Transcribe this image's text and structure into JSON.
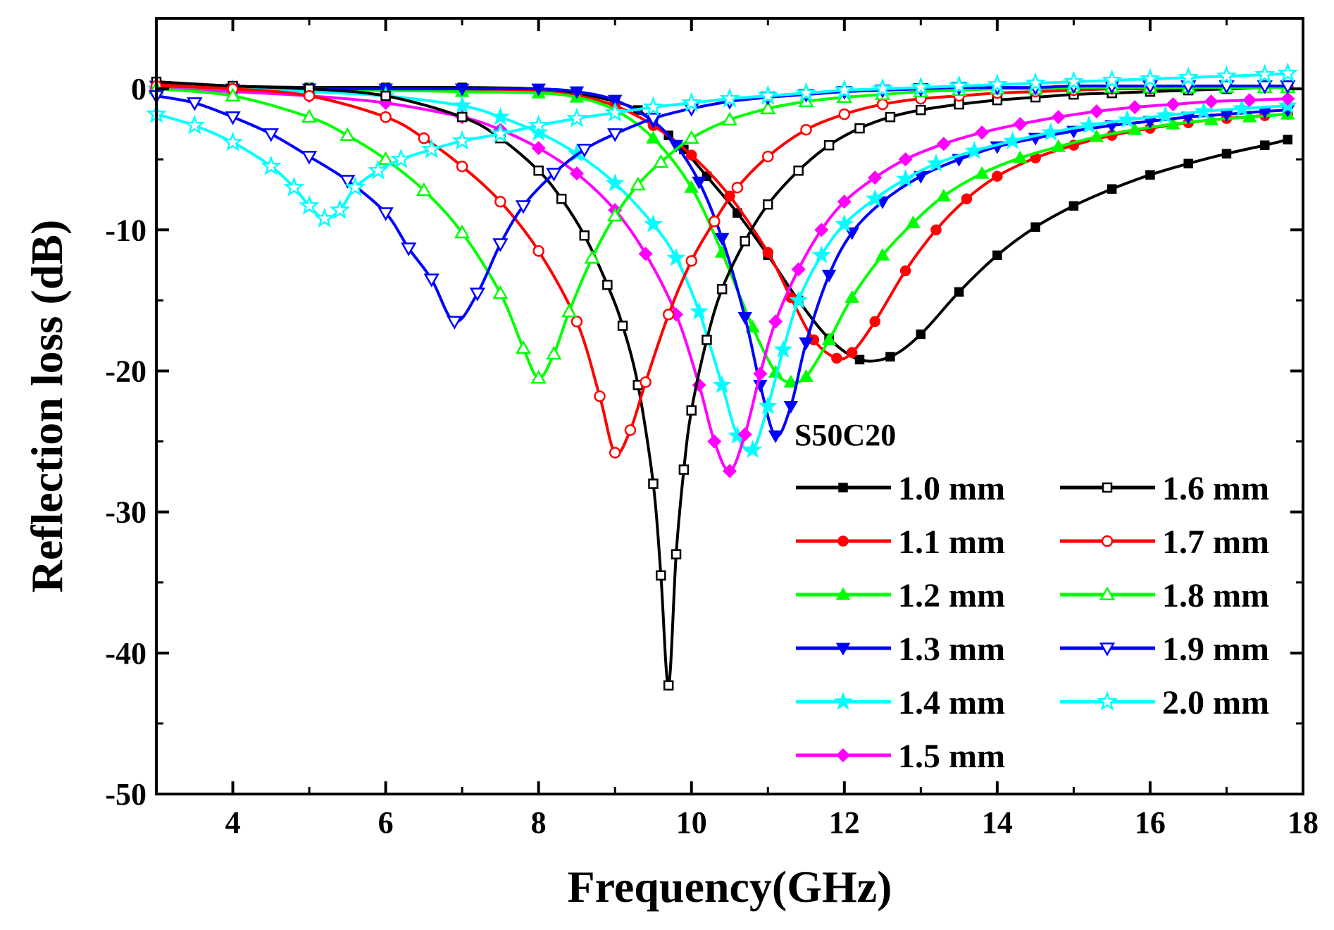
{
  "chart_data": {
    "type": "line",
    "xlabel": "Frequency(GHz)",
    "ylabel": "Reflection loss (dB)",
    "xlim": [
      3,
      18
    ],
    "ylim": [
      -50,
      5
    ],
    "xticks": [
      4,
      6,
      8,
      10,
      12,
      14,
      16,
      18
    ],
    "yticks": [
      0,
      -10,
      -20,
      -30,
      -40,
      -50
    ],
    "legend_title": "S50C20",
    "legend_position": "bottom-right",
    "grid": false,
    "series": [
      {
        "name": "1.0 mm",
        "color": "#000000",
        "marker": "square-filled",
        "x": [
          3.0,
          4.0,
          5.0,
          6.0,
          7.0,
          8.0,
          8.5,
          9.0,
          9.3,
          9.5,
          9.7,
          9.9,
          10.2,
          10.6,
          11.0,
          11.4,
          11.8,
          12.2,
          12.6,
          13.0,
          13.5,
          14.0,
          14.5,
          15.0,
          15.5,
          16.0,
          16.5,
          17.0,
          17.5,
          17.8
        ],
        "y": [
          0.5,
          0.2,
          0.1,
          0.1,
          0.1,
          0.0,
          -0.3,
          -0.9,
          -1.5,
          -2.4,
          -3.3,
          -4.3,
          -6.2,
          -8.8,
          -11.8,
          -15.0,
          -17.7,
          -19.2,
          -19.0,
          -17.4,
          -14.4,
          -11.8,
          -9.8,
          -8.3,
          -7.1,
          -6.1,
          -5.3,
          -4.6,
          -4.0,
          -3.6
        ]
      },
      {
        "name": "1.1 mm",
        "color": "#ff0000",
        "marker": "circle-filled",
        "x": [
          3.0,
          4.0,
          5.0,
          6.0,
          7.0,
          8.0,
          8.5,
          9.0,
          9.5,
          10.0,
          10.5,
          11.0,
          11.3,
          11.6,
          11.9,
          12.1,
          12.4,
          12.8,
          13.2,
          13.6,
          14.0,
          14.5,
          15.0,
          15.5,
          16.0,
          16.5,
          17.0,
          17.5,
          17.8
        ],
        "y": [
          0.3,
          0.1,
          0.0,
          -0.1,
          -0.1,
          -0.2,
          -0.5,
          -1.2,
          -2.6,
          -4.7,
          -7.6,
          -11.6,
          -14.8,
          -17.8,
          -19.1,
          -18.7,
          -16.5,
          -12.9,
          -10.0,
          -7.8,
          -6.2,
          -4.9,
          -4.0,
          -3.3,
          -2.8,
          -2.4,
          -2.1,
          -1.9,
          -1.8
        ]
      },
      {
        "name": "1.2 mm",
        "color": "#00ff00",
        "marker": "triangle-up-filled",
        "x": [
          3.0,
          4.0,
          5.0,
          6.0,
          7.0,
          8.0,
          8.5,
          9.0,
          9.5,
          10.0,
          10.4,
          10.8,
          11.1,
          11.3,
          11.5,
          11.8,
          12.1,
          12.5,
          12.9,
          13.3,
          13.8,
          14.3,
          14.8,
          15.3,
          15.8,
          16.3,
          16.8,
          17.3,
          17.8
        ],
        "y": [
          0.1,
          0.0,
          0.0,
          -0.1,
          -0.2,
          -0.3,
          -0.6,
          -1.5,
          -3.5,
          -7.0,
          -11.6,
          -16.9,
          -20.1,
          -20.8,
          -20.4,
          -17.8,
          -14.8,
          -11.8,
          -9.5,
          -7.6,
          -6.0,
          -4.9,
          -4.1,
          -3.4,
          -2.9,
          -2.5,
          -2.2,
          -2.0,
          -1.8
        ]
      },
      {
        "name": "1.3 mm",
        "color": "#0000ff",
        "marker": "triangle-down-filled",
        "x": [
          3.0,
          4.0,
          5.0,
          6.0,
          7.0,
          8.0,
          8.5,
          9.0,
          9.5,
          9.8,
          10.1,
          10.4,
          10.7,
          10.9,
          11.1,
          11.3,
          11.5,
          11.8,
          12.1,
          12.5,
          13.0,
          13.5,
          14.0,
          14.5,
          15.0,
          15.5,
          16.0,
          16.5,
          17.0,
          17.5,
          17.8
        ],
        "y": [
          0.2,
          0.0,
          0.0,
          0.0,
          0.0,
          0.0,
          -0.2,
          -0.8,
          -2.3,
          -4.0,
          -6.6,
          -10.6,
          -16.2,
          -21.0,
          -24.6,
          -22.5,
          -18.0,
          -13.2,
          -10.2,
          -8.0,
          -6.2,
          -5.0,
          -4.1,
          -3.5,
          -3.0,
          -2.6,
          -2.3,
          -2.0,
          -1.8,
          -1.6,
          -1.5
        ]
      },
      {
        "name": "1.4 mm",
        "color": "#00ffff",
        "marker": "star-filled",
        "x": [
          3.0,
          4.0,
          5.0,
          6.0,
          7.0,
          7.5,
          8.0,
          8.5,
          9.0,
          9.5,
          9.8,
          10.1,
          10.4,
          10.6,
          10.8,
          11.0,
          11.2,
          11.4,
          11.7,
          12.0,
          12.4,
          12.8,
          13.2,
          13.7,
          14.2,
          14.7,
          15.2,
          15.7,
          16.2,
          16.7,
          17.2,
          17.8
        ],
        "y": [
          0.0,
          0.0,
          -0.2,
          -0.5,
          -1.2,
          -2.0,
          -3.1,
          -4.6,
          -6.7,
          -9.6,
          -12.0,
          -15.8,
          -21.0,
          -24.6,
          -25.6,
          -22.5,
          -18.5,
          -15.0,
          -11.8,
          -9.6,
          -7.8,
          -6.4,
          -5.3,
          -4.4,
          -3.7,
          -3.1,
          -2.6,
          -2.2,
          -1.9,
          -1.6,
          -1.4,
          -1.2
        ]
      },
      {
        "name": "1.5 mm",
        "color": "#ff00ff",
        "marker": "diamond-filled",
        "x": [
          3.0,
          4.0,
          5.0,
          6.0,
          7.0,
          7.5,
          8.0,
          8.5,
          9.0,
          9.4,
          9.8,
          10.1,
          10.3,
          10.5,
          10.7,
          10.9,
          11.1,
          11.4,
          11.7,
          12.0,
          12.4,
          12.8,
          13.3,
          13.8,
          14.3,
          14.8,
          15.3,
          15.8,
          16.3,
          16.8,
          17.3,
          17.8
        ],
        "y": [
          0.0,
          -0.2,
          -0.5,
          -1.0,
          -2.0,
          -2.9,
          -4.2,
          -6.0,
          -8.6,
          -11.7,
          -16.0,
          -21.0,
          -25.0,
          -27.1,
          -24.5,
          -20.2,
          -16.5,
          -12.8,
          -10.0,
          -8.0,
          -6.3,
          -5.0,
          -3.9,
          -3.1,
          -2.5,
          -2.0,
          -1.6,
          -1.3,
          -1.1,
          -0.9,
          -0.8,
          -0.7
        ]
      },
      {
        "name": "1.6 mm",
        "color": "#000000",
        "marker": "square-open",
        "x": [
          3.0,
          4.0,
          5.0,
          6.0,
          7.0,
          7.5,
          8.0,
          8.3,
          8.6,
          8.9,
          9.1,
          9.3,
          9.5,
          9.6,
          9.7,
          9.8,
          9.9,
          10.0,
          10.2,
          10.4,
          10.7,
          11.0,
          11.4,
          11.8,
          12.2,
          12.6,
          13.0,
          13.5,
          14.0,
          14.5,
          15.0,
          15.5,
          16.0,
          16.5,
          17.0,
          17.5,
          17.8
        ],
        "y": [
          0.5,
          0.2,
          0.0,
          -0.5,
          -2.0,
          -3.5,
          -5.8,
          -7.8,
          -10.4,
          -13.9,
          -16.8,
          -21.0,
          -28.0,
          -34.5,
          -42.3,
          -33.0,
          -27.0,
          -22.8,
          -17.8,
          -14.2,
          -10.8,
          -8.2,
          -5.8,
          -4.0,
          -2.8,
          -2.0,
          -1.5,
          -1.1,
          -0.8,
          -0.6,
          -0.4,
          -0.3,
          -0.2,
          -0.1,
          0.0,
          0.1,
          0.1
        ]
      },
      {
        "name": "1.7 mm",
        "color": "#ff0000",
        "marker": "circle-open",
        "x": [
          3.0,
          4.0,
          5.0,
          6.0,
          6.5,
          7.0,
          7.5,
          8.0,
          8.5,
          8.8,
          9.0,
          9.2,
          9.4,
          9.7,
          10.0,
          10.3,
          10.6,
          11.0,
          11.5,
          12.0,
          12.5,
          13.0,
          13.5,
          14.0,
          14.5,
          15.0,
          15.5,
          16.0,
          16.5,
          17.0,
          17.5,
          17.8
        ],
        "y": [
          0.2,
          0.0,
          -0.5,
          -2.0,
          -3.5,
          -5.5,
          -8.0,
          -11.5,
          -16.5,
          -21.8,
          -25.8,
          -24.2,
          -20.8,
          -16.0,
          -12.2,
          -9.4,
          -7.0,
          -4.8,
          -2.9,
          -1.8,
          -1.1,
          -0.7,
          -0.5,
          -0.3,
          -0.2,
          -0.1,
          0.0,
          0.0,
          0.1,
          0.1,
          0.1,
          0.2
        ]
      },
      {
        "name": "1.8 mm",
        "color": "#00ff00",
        "marker": "triangle-up-open",
        "x": [
          3.0,
          4.0,
          5.0,
          5.5,
          6.0,
          6.5,
          7.0,
          7.5,
          7.8,
          8.0,
          8.2,
          8.4,
          8.7,
          9.0,
          9.3,
          9.6,
          10.0,
          10.5,
          11.0,
          11.5,
          12.0,
          12.5,
          13.0,
          13.5,
          14.0,
          14.5,
          15.0,
          15.5,
          16.0,
          16.5,
          17.0,
          17.5,
          17.8
        ],
        "y": [
          0.0,
          -0.5,
          -2.0,
          -3.3,
          -5.0,
          -7.2,
          -10.2,
          -14.5,
          -18.4,
          -20.5,
          -18.8,
          -15.8,
          -12.0,
          -9.0,
          -6.8,
          -5.2,
          -3.5,
          -2.2,
          -1.4,
          -0.9,
          -0.6,
          -0.4,
          -0.2,
          -0.1,
          0.0,
          0.0,
          0.1,
          0.1,
          0.1,
          0.1,
          0.1,
          0.1,
          0.1
        ]
      },
      {
        "name": "1.9 mm",
        "color": "#0000ff",
        "marker": "triangle-down-open",
        "x": [
          3.0,
          3.5,
          4.0,
          4.5,
          5.0,
          5.5,
          6.0,
          6.3,
          6.6,
          6.9,
          7.2,
          7.5,
          7.8,
          8.2,
          8.6,
          9.0,
          9.5,
          10.0,
          10.5,
          11.0,
          11.5,
          12.0,
          12.5,
          13.0,
          13.5,
          14.0,
          14.5,
          15.0,
          15.5,
          16.0,
          16.5,
          17.0,
          17.5,
          17.8
        ],
        "y": [
          -0.5,
          -1.0,
          -2.0,
          -3.2,
          -4.8,
          -6.5,
          -8.8,
          -11.3,
          -13.5,
          -16.5,
          -14.5,
          -11.0,
          -8.3,
          -6.0,
          -4.3,
          -3.2,
          -2.1,
          -1.4,
          -0.9,
          -0.6,
          -0.4,
          -0.2,
          -0.1,
          0.0,
          0.1,
          0.1,
          0.1,
          0.2,
          0.2,
          0.2,
          0.2,
          0.2,
          0.2,
          0.2
        ]
      },
      {
        "name": "2.0 mm",
        "color": "#00ffff",
        "marker": "star-open",
        "x": [
          3.0,
          3.5,
          4.0,
          4.5,
          4.8,
          5.0,
          5.2,
          5.4,
          5.6,
          5.9,
          6.2,
          6.6,
          7.0,
          7.5,
          8.0,
          8.5,
          9.0,
          9.5,
          10.0,
          10.5,
          11.0,
          11.5,
          12.0,
          12.5,
          13.0,
          13.5,
          14.0,
          14.5,
          15.0,
          15.5,
          16.0,
          16.5,
          17.0,
          17.5,
          17.8
        ],
        "y": [
          -1.8,
          -2.6,
          -3.8,
          -5.5,
          -7.0,
          -8.3,
          -9.2,
          -8.6,
          -7.0,
          -5.8,
          -5.0,
          -4.3,
          -3.7,
          -3.2,
          -2.6,
          -2.1,
          -1.7,
          -1.3,
          -1.0,
          -0.7,
          -0.5,
          -0.3,
          -0.1,
          0.0,
          0.1,
          0.2,
          0.3,
          0.4,
          0.5,
          0.6,
          0.7,
          0.8,
          0.9,
          1.0,
          1.1
        ]
      }
    ]
  }
}
